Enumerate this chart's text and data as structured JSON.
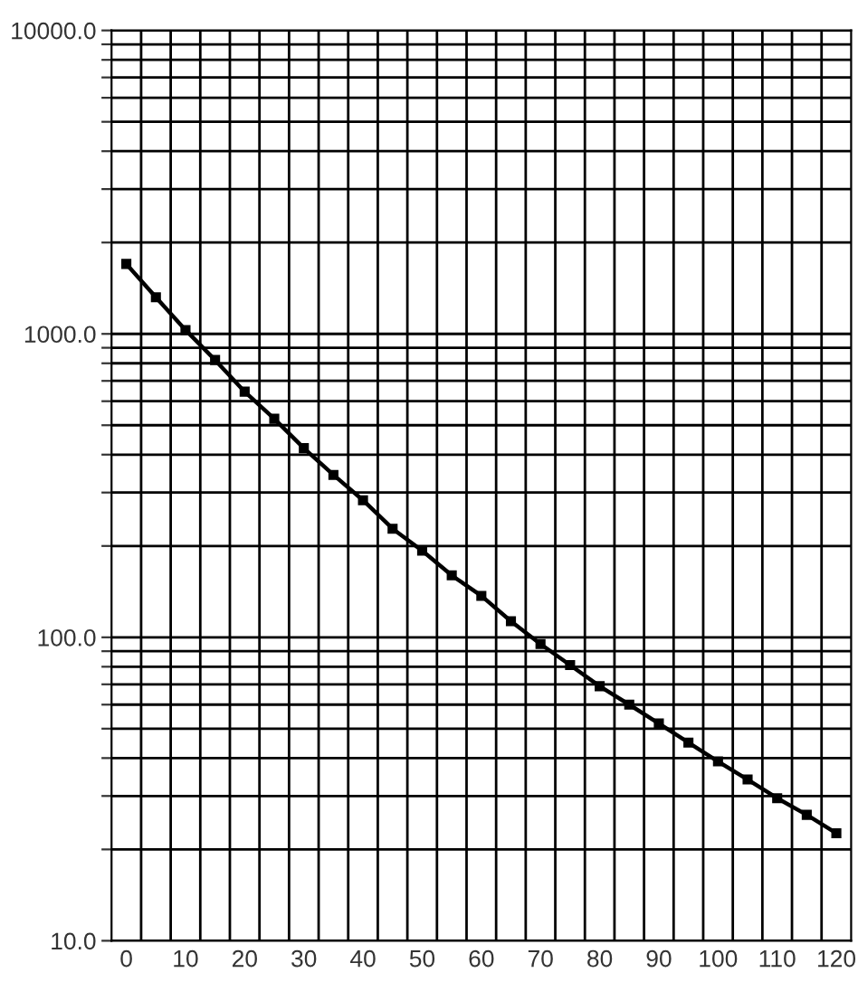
{
  "chart_data": {
    "type": "line",
    "x": [
      0,
      5,
      10,
      15,
      20,
      25,
      30,
      35,
      40,
      45,
      50,
      55,
      60,
      65,
      70,
      75,
      80,
      85,
      90,
      95,
      100,
      105,
      110,
      115,
      120
    ],
    "series": [
      {
        "color": "#000000",
        "values": [
          1700,
          1320,
          1030,
          820,
          645,
          525,
          420,
          343,
          283,
          228,
          193,
          160,
          137,
          113,
          95,
          81,
          69,
          60,
          52,
          45,
          39,
          34,
          29.5,
          26,
          22.6
        ]
      }
    ],
    "log": "y",
    "marker": "square",
    "line_style": "solid",
    "grid": true,
    "xlim": [
      -2.5,
      122.5
    ],
    "xticks": [
      0,
      10,
      20,
      30,
      40,
      50,
      60,
      70,
      80,
      90,
      100,
      110,
      120,
      {
        "value": 2.5,
        "label": null
      },
      {
        "value": 7.5,
        "label": null
      },
      {
        "value": 12.5,
        "label": null
      },
      {
        "value": 17.5,
        "label": null
      },
      {
        "value": 22.5,
        "label": null
      },
      {
        "value": 27.5,
        "label": null
      },
      {
        "value": 32.5,
        "label": null
      },
      {
        "value": 37.5,
        "label": null
      },
      {
        "value": 42.5,
        "label": null
      },
      {
        "value": 47.5,
        "label": null
      },
      {
        "value": 52.5,
        "label": null
      },
      {
        "value": 57.5,
        "label": null
      },
      {
        "value": 62.5,
        "label": null
      },
      {
        "value": 67.5,
        "label": null
      },
      {
        "value": 72.5,
        "label": null
      },
      {
        "value": 77.5,
        "label": null
      },
      {
        "value": 82.5,
        "label": null
      },
      {
        "value": 87.5,
        "label": null
      },
      {
        "value": 92.5,
        "label": null
      },
      {
        "value": 97.5,
        "label": null
      },
      {
        "value": 102.5,
        "label": null
      },
      {
        "value": 107.5,
        "label": null
      },
      {
        "value": 112.5,
        "label": null
      },
      {
        "value": 117.5,
        "label": null
      }
    ],
    "ylim": [
      10,
      10000
    ],
    "yticks": [
      {
        "value": 10,
        "label": "10.0"
      },
      {
        "value": 100,
        "label": "100.0"
      },
      {
        "value": 1000,
        "label": "1000.0"
      },
      {
        "value": 10000,
        "label": "10000.0"
      },
      {
        "value": 20,
        "label": null
      },
      {
        "value": 30,
        "label": null
      },
      {
        "value": 40,
        "label": null
      },
      {
        "value": 50,
        "label": null
      },
      {
        "value": 60,
        "label": null
      },
      {
        "value": 70,
        "label": null
      },
      {
        "value": 80,
        "label": null
      },
      {
        "value": 90,
        "label": null
      },
      {
        "value": 200,
        "label": null
      },
      {
        "value": 300,
        "label": null
      },
      {
        "value": 400,
        "label": null
      },
      {
        "value": 500,
        "label": null
      },
      {
        "value": 600,
        "label": null
      },
      {
        "value": 700,
        "label": null
      },
      {
        "value": 800,
        "label": null
      },
      {
        "value": 900,
        "label": null
      },
      {
        "value": 2000,
        "label": null
      },
      {
        "value": 3000,
        "label": null
      },
      {
        "value": 4000,
        "label": null
      },
      {
        "value": 5000,
        "label": null
      },
      {
        "value": 6000,
        "label": null
      },
      {
        "value": 7000,
        "label": null
      },
      {
        "value": 8000,
        "label": null
      },
      {
        "value": 9000,
        "label": null
      }
    ]
  }
}
